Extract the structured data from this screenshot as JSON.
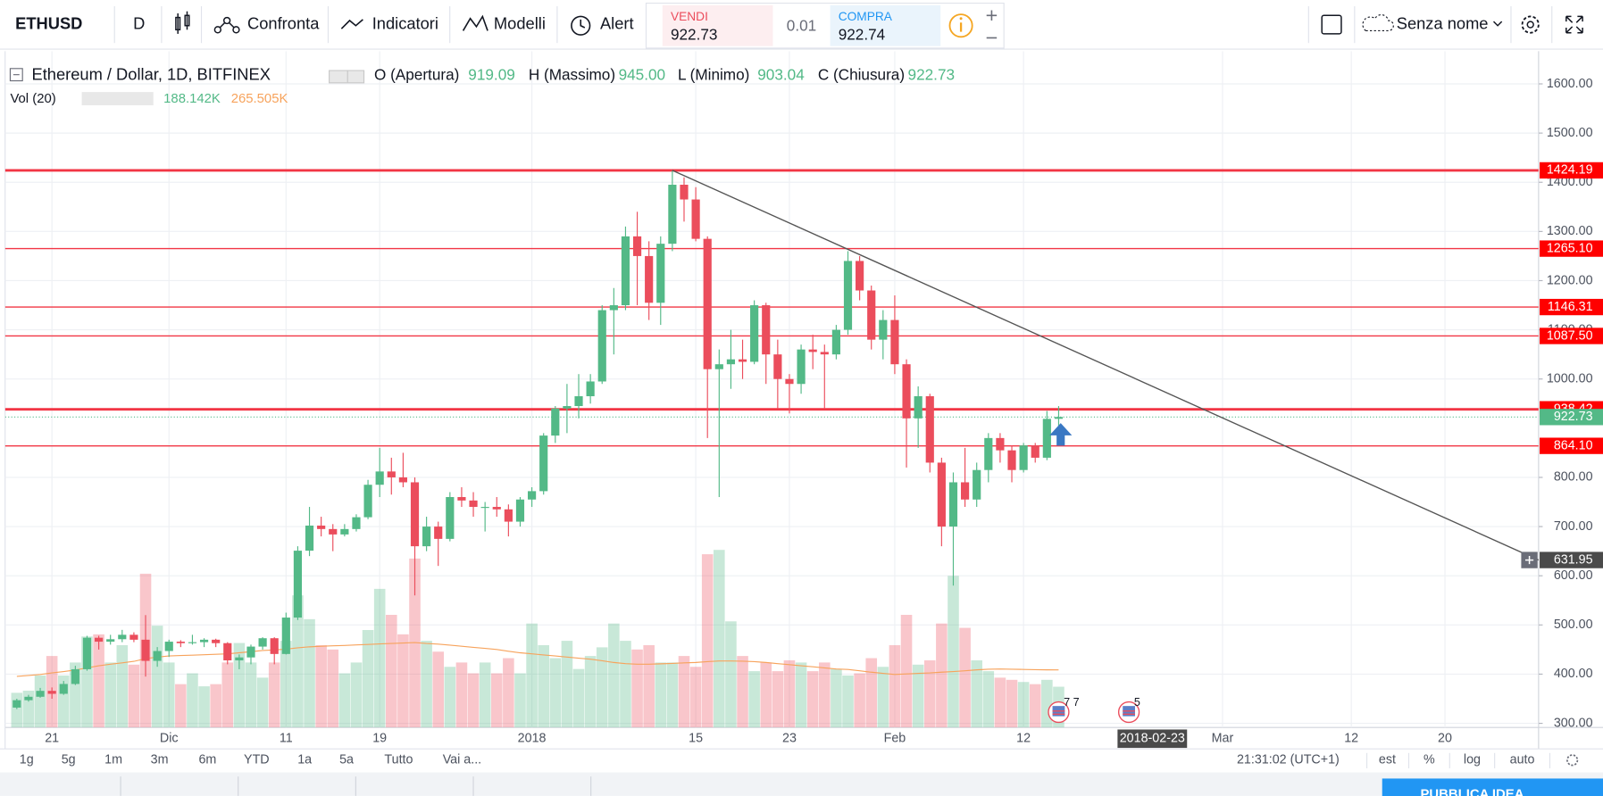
{
  "toolbar": {
    "symbol": "ETHUSD",
    "interval": "D",
    "compare": "Confronta",
    "indicators": "Indicatori",
    "templates": "Modelli",
    "alert": "Alert",
    "sell_label": "VENDI",
    "sell_price": "922.73",
    "spread": "0.01",
    "buy_label": "COMPRA",
    "buy_price": "922.74",
    "layout_name": "Senza nome"
  },
  "chart_data": {
    "type": "candlestick",
    "title": "Ethereum / Dollar, 1D, BITFINEX",
    "ohlc_legend": [
      {
        "label": "O (Apertura)",
        "value": "919.09"
      },
      {
        "label": "H (Massimo)",
        "value": "945.00"
      },
      {
        "label": "L (Minimo)",
        "value": "903.04"
      },
      {
        "label": "C (Chiusura)",
        "value": "922.73"
      }
    ],
    "volume_legend": {
      "label": "Vol (20)",
      "volume": "188.142K",
      "average": "265.505K"
    },
    "colors": {
      "up": "#53b987",
      "down": "#eb4d5c",
      "volume_ma": "#f7a35c",
      "level": "#f23645",
      "trendline": "#555555"
    },
    "x": [
      "2017-11-18",
      "2017-11-19",
      "2017-11-20",
      "2017-11-21",
      "2017-11-22",
      "2017-11-23",
      "2017-11-24",
      "2017-11-25",
      "2017-11-26",
      "2017-11-27",
      "2017-11-28",
      "2017-11-29",
      "2017-11-30",
      "2017-12-01",
      "2017-12-02",
      "2017-12-03",
      "2017-12-04",
      "2017-12-05",
      "2017-12-06",
      "2017-12-07",
      "2017-12-08",
      "2017-12-09",
      "2017-12-10",
      "2017-12-11",
      "2017-12-12",
      "2017-12-13",
      "2017-12-14",
      "2017-12-15",
      "2017-12-16",
      "2017-12-17",
      "2017-12-18",
      "2017-12-19",
      "2017-12-20",
      "2017-12-21",
      "2017-12-22",
      "2017-12-23",
      "2017-12-24",
      "2017-12-25",
      "2017-12-26",
      "2017-12-27",
      "2017-12-28",
      "2017-12-29",
      "2017-12-30",
      "2017-12-31",
      "2018-01-01",
      "2018-01-02",
      "2018-01-03",
      "2018-01-04",
      "2018-01-05",
      "2018-01-06",
      "2018-01-07",
      "2018-01-08",
      "2018-01-09",
      "2018-01-10",
      "2018-01-11",
      "2018-01-12",
      "2018-01-13",
      "2018-01-14",
      "2018-01-15",
      "2018-01-16",
      "2018-01-17",
      "2018-01-18",
      "2018-01-19",
      "2018-01-20",
      "2018-01-21",
      "2018-01-22",
      "2018-01-23",
      "2018-01-24",
      "2018-01-25",
      "2018-01-26",
      "2018-01-27",
      "2018-01-28",
      "2018-01-29",
      "2018-01-30",
      "2018-01-31",
      "2018-02-01",
      "2018-02-02",
      "2018-02-03",
      "2018-02-04",
      "2018-02-05",
      "2018-02-06",
      "2018-02-07",
      "2018-02-08",
      "2018-02-09",
      "2018-02-10",
      "2018-02-11",
      "2018-02-12",
      "2018-02-13",
      "2018-02-14",
      "2018-02-15"
    ],
    "open": [
      332,
      347,
      354,
      366,
      360,
      380,
      410,
      474,
      466,
      471,
      480,
      470,
      427,
      447,
      466,
      463,
      465,
      470,
      463,
      428,
      434,
      456,
      473,
      441,
      515,
      651,
      702,
      695,
      684,
      695,
      719,
      785,
      812,
      800,
      790,
      660,
      700,
      675,
      760,
      753,
      740,
      740,
      735,
      710,
      755,
      772,
      885,
      940,
      945,
      965,
      995,
      1140,
      1150,
      1290,
      1250,
      1155,
      1275,
      1395,
      1365,
      1285,
      1020,
      1030,
      1040,
      1035,
      1150,
      1050,
      1000,
      990,
      1060,
      1055,
      1050,
      1100,
      1240,
      1180,
      1080,
      1120,
      1030,
      920,
      965,
      830,
      700,
      790,
      755,
      815,
      880,
      855,
      815,
      865,
      840,
      919.09
    ],
    "high": [
      350,
      358,
      372,
      373,
      386,
      417,
      478,
      478,
      480,
      490,
      485,
      520,
      455,
      470,
      469,
      480,
      473,
      472,
      465,
      440,
      460,
      475,
      475,
      525,
      660,
      740,
      720,
      705,
      705,
      725,
      795,
      860,
      840,
      850,
      800,
      720,
      710,
      770,
      780,
      770,
      750,
      760,
      745,
      760,
      780,
      890,
      945,
      990,
      1010,
      1010,
      1150,
      1185,
      1310,
      1340,
      1280,
      1290,
      1424,
      1410,
      1390,
      1290,
      1060,
      1100,
      1080,
      1160,
      1155,
      1080,
      1010,
      1070,
      1090,
      1070,
      1110,
      1260,
      1250,
      1190,
      1140,
      1170,
      1040,
      985,
      970,
      840,
      810,
      860,
      830,
      890,
      890,
      865,
      870,
      870,
      935,
      945
    ],
    "low": [
      329,
      344,
      352,
      350,
      358,
      378,
      407,
      450,
      460,
      465,
      465,
      395,
      415,
      435,
      455,
      460,
      455,
      455,
      420,
      410,
      420,
      450,
      420,
      440,
      510,
      640,
      680,
      650,
      680,
      690,
      715,
      760,
      765,
      780,
      560,
      650,
      620,
      670,
      740,
      720,
      690,
      720,
      680,
      700,
      740,
      765,
      870,
      890,
      920,
      950,
      990,
      1050,
      1140,
      1150,
      1120,
      1110,
      1260,
      1320,
      1280,
      880,
      760,
      980,
      1000,
      1030,
      990,
      940,
      930,
      970,
      1020,
      940,
      1040,
      1090,
      1160,
      1060,
      1040,
      1010,
      820,
      860,
      810,
      660,
      580,
      740,
      740,
      790,
      830,
      790,
      810,
      830,
      835,
      903.04
    ],
    "close": [
      347,
      354,
      366,
      360,
      380,
      410,
      474,
      466,
      471,
      480,
      470,
      427,
      447,
      466,
      463,
      465,
      470,
      463,
      428,
      434,
      456,
      473,
      441,
      515,
      651,
      702,
      695,
      684,
      695,
      719,
      785,
      812,
      800,
      790,
      660,
      700,
      675,
      760,
      753,
      740,
      740,
      735,
      710,
      755,
      772,
      885,
      940,
      945,
      965,
      995,
      1140,
      1150,
      1290,
      1250,
      1155,
      1275,
      1395,
      1365,
      1285,
      1020,
      1030,
      1040,
      1035,
      1150,
      1050,
      1000,
      990,
      1060,
      1055,
      1050,
      1100,
      1240,
      1180,
      1080,
      1120,
      1030,
      920,
      965,
      830,
      700,
      790,
      755,
      815,
      880,
      855,
      815,
      865,
      840,
      919,
      922.73
    ],
    "volume": [
      160,
      170,
      240,
      330,
      240,
      300,
      420,
      430,
      300,
      380,
      290,
      710,
      470,
      300,
      200,
      250,
      190,
      200,
      300,
      390,
      300,
      230,
      300,
      400,
      610,
      500,
      380,
      360,
      250,
      300,
      450,
      640,
      520,
      430,
      780,
      400,
      350,
      280,
      300,
      250,
      300,
      250,
      320,
      250,
      480,
      380,
      320,
      400,
      270,
      330,
      370,
      480,
      400,
      360,
      380,
      300,
      300,
      330,
      280,
      800,
      820,
      490,
      330,
      260,
      300,
      260,
      310,
      300,
      260,
      300,
      270,
      240,
      250,
      320,
      280,
      380,
      520,
      290,
      310,
      480,
      700,
      460,
      310,
      260,
      230,
      220,
      210,
      200,
      220,
      188.142
    ],
    "volume_ma": [
      236,
      240,
      245,
      252,
      258,
      265,
      275,
      285,
      292,
      298,
      305,
      318,
      325,
      330,
      332,
      334,
      336,
      338,
      340,
      345,
      350,
      355,
      358,
      362,
      368,
      372,
      375,
      377,
      379,
      381,
      383,
      386,
      388,
      390,
      392,
      388,
      385,
      380,
      375,
      370,
      365,
      360,
      352,
      345,
      340,
      335,
      330,
      325,
      320,
      315,
      308,
      300,
      295,
      292,
      292,
      294,
      296,
      298,
      300,
      304,
      307,
      307,
      306,
      304,
      300,
      295,
      290,
      285,
      280,
      275,
      270,
      268,
      262,
      255,
      250,
      245,
      247,
      250,
      252,
      255,
      258,
      262,
      266,
      269,
      270,
      269,
      268,
      267,
      266,
      265.505
    ],
    "volume_ylim": [
      0,
      3123
    ],
    "xlim": [
      "2017-11-17",
      "2018-03-28"
    ],
    "xticks": [
      {
        "value": "2017-11-21",
        "label": "21"
      },
      {
        "value": "2017-12-01",
        "label": "Dic"
      },
      {
        "value": "2017-12-11",
        "label": "11"
      },
      {
        "value": "2017-12-19",
        "label": "19"
      },
      {
        "value": "2018-01-01",
        "label": "2018"
      },
      {
        "value": "2018-01-15",
        "label": "15"
      },
      {
        "value": "2018-01-23",
        "label": "23"
      },
      {
        "value": "2018-02-01",
        "label": "Feb"
      },
      {
        "value": "2018-02-12",
        "label": "12"
      },
      {
        "value": "2018-03-01",
        "label": "Mar"
      },
      {
        "value": "2018-03-12",
        "label": "12"
      },
      {
        "value": "2018-03-20",
        "label": "20"
      }
    ],
    "ylim": [
      291.6,
      1666.5
    ],
    "yticks": [
      {
        "value": 300,
        "label": "300.00"
      },
      {
        "value": 400,
        "label": "400.00"
      },
      {
        "value": 500,
        "label": "500.00"
      },
      {
        "value": 600,
        "label": "600.00"
      },
      {
        "value": 700,
        "label": "700.00"
      },
      {
        "value": 800,
        "label": "800.00"
      },
      {
        "value": 1000,
        "label": "1000.00"
      },
      {
        "value": 1100,
        "label": "1100.00"
      },
      {
        "value": 1200,
        "label": "1200.00"
      },
      {
        "value": 1300,
        "label": "1300.00"
      },
      {
        "value": 1400,
        "label": "1400.00"
      },
      {
        "value": 1500,
        "label": "1500.00"
      },
      {
        "value": 1600,
        "label": "1600.00"
      }
    ],
    "grid": true,
    "levels": [
      {
        "value": 1424.19,
        "label": "1424.19",
        "width": 2.5
      },
      {
        "value": 1265.1,
        "label": "1265.10",
        "width": 1.2
      },
      {
        "value": 1146.31,
        "label": "1146.31",
        "width": 1.2
      },
      {
        "value": 1087.5,
        "label": "1087.50",
        "width": 1.2
      },
      {
        "value": 938.42,
        "label": "938.42",
        "width": 2.5
      },
      {
        "value": 864.1,
        "label": "864.10",
        "width": 1.2
      }
    ],
    "last_price": {
      "value": 922.73,
      "label": "922.73"
    },
    "trendline": {
      "x": [
        "2018-01-13",
        "2018-03-28"
      ],
      "y": [
        1424.19,
        631.95
      ]
    },
    "cursor_date": "2018-02-23",
    "events": [
      {
        "x": "2018-02-15",
        "label": "7 7"
      },
      {
        "x": "2018-02-21",
        "label": "5"
      }
    ]
  },
  "bottom_bar": {
    "ranges": [
      "1g",
      "5g",
      "1m",
      "3m",
      "6m",
      "YTD",
      "1a",
      "5a",
      "Tutto"
    ],
    "goto": "Vai a...",
    "clock": "21:31:02 (UTC+1)",
    "options": [
      "est",
      "%",
      "log",
      "auto"
    ]
  },
  "footer": {
    "publish": "PUBBLICA IDEA"
  }
}
